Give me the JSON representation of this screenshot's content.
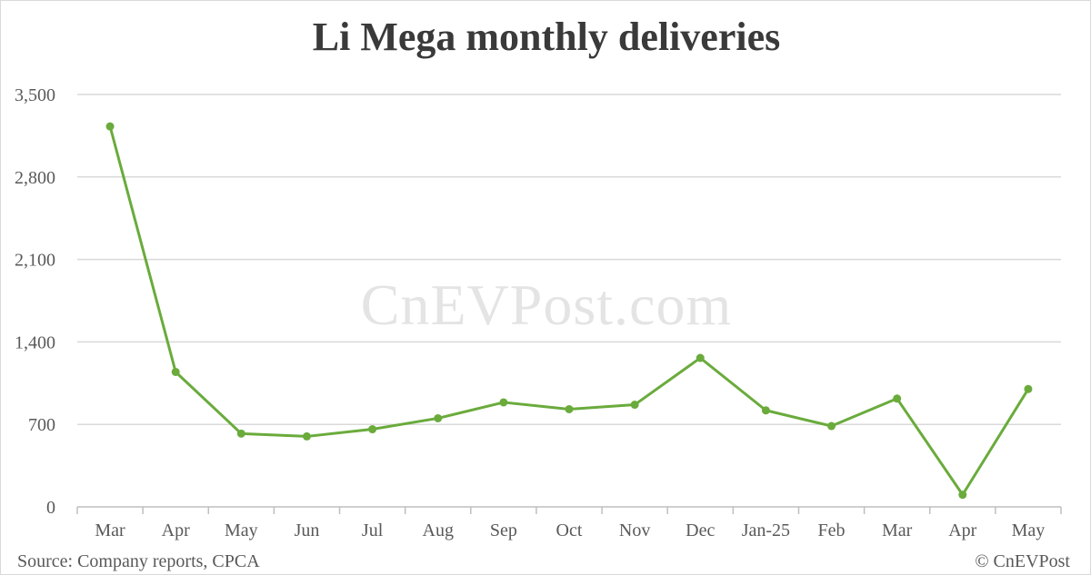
{
  "chart_data": {
    "type": "line",
    "title": "Li Mega monthly deliveries",
    "xlabel": "",
    "ylabel": "",
    "categories": [
      "Mar",
      "Apr",
      "May",
      "Jun",
      "Jul",
      "Aug",
      "Sep",
      "Oct",
      "Nov",
      "Dec",
      "Jan-25",
      "Feb",
      "Mar",
      "Apr",
      "May"
    ],
    "series": [
      {
        "values": [
          3229,
          1145,
          622,
          598,
          659,
          752,
          887,
          829,
          867,
          1264,
          819,
          686,
          919,
          103,
          1000
        ]
      }
    ],
    "ylim": [
      0,
      3500
    ],
    "yticks": [
      0,
      700,
      1400,
      2100,
      2800,
      3500
    ],
    "ytick_labels": [
      "0",
      "700",
      "1,400",
      "2,100",
      "2,800",
      "3,500"
    ],
    "grid": true,
    "legend": "none",
    "line_color": "#6aab3c",
    "watermark": "CnEVPost.com",
    "source": "Source: Company reports, CPCA",
    "copyright": "© CnEVPost"
  }
}
